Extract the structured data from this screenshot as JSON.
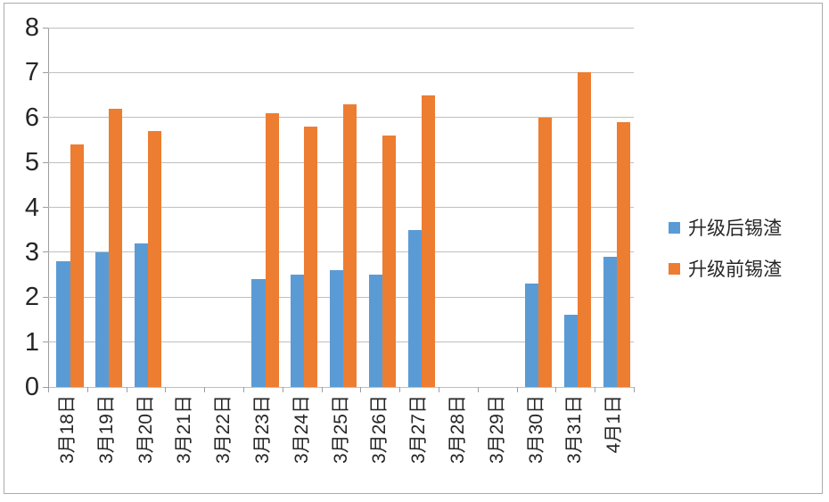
{
  "chart_data": {
    "type": "bar",
    "title": "",
    "xlabel": "",
    "ylabel": "",
    "categories": [
      "3月18日",
      "3月19日",
      "3月20日",
      "3月21日",
      "3月22日",
      "3月23日",
      "3月24日",
      "3月25日",
      "3月26日",
      "3月27日",
      "3月28日",
      "3月29日",
      "3月30日",
      "3月31日",
      "4月1日"
    ],
    "series": [
      {
        "name": "升级后锡渣",
        "color": "#5b9bd5",
        "values": [
          2.8,
          3.0,
          3.2,
          null,
          null,
          2.4,
          2.5,
          2.6,
          2.5,
          3.5,
          null,
          null,
          2.3,
          1.6,
          2.9
        ]
      },
      {
        "name": "升级前锡渣",
        "color": "#ed7d31",
        "values": [
          5.4,
          6.2,
          5.7,
          null,
          null,
          6.1,
          5.8,
          6.3,
          5.6,
          6.5,
          null,
          null,
          6.0,
          7.0,
          5.9
        ]
      }
    ],
    "ylim": [
      0,
      8
    ],
    "ytick_step": 1,
    "yticks": [
      "0",
      "1",
      "2",
      "3",
      "4",
      "5",
      "6",
      "7",
      "8"
    ],
    "grid": true,
    "legend_position": "right"
  },
  "colors": {
    "background": "#ffffff",
    "border": "#ababab",
    "gridline": "#bfbfbf",
    "axis": "#9d9d9d",
    "text": "#262626"
  }
}
